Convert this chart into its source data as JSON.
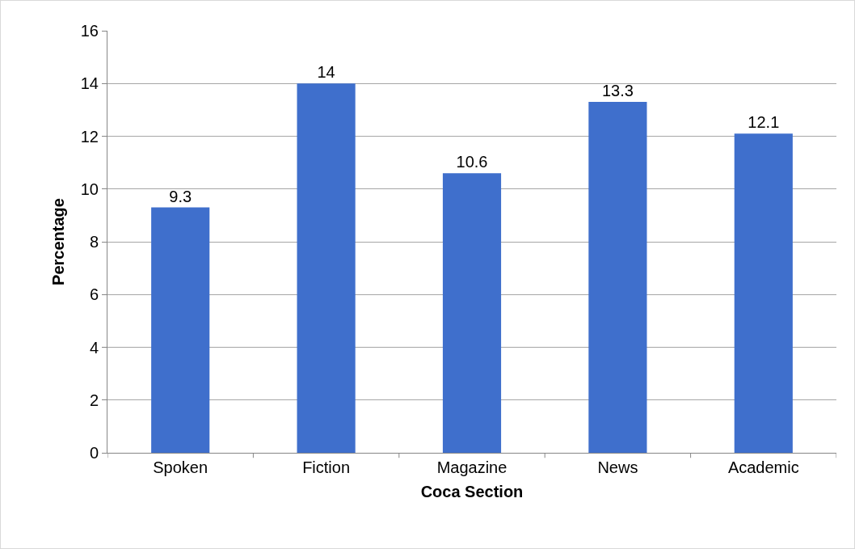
{
  "chart_data": {
    "type": "bar",
    "xlabel": "Coca Section",
    "ylabel": "Percentage",
    "categories": [
      "Spoken",
      "Fiction",
      "Magazine",
      "News",
      "Academic"
    ],
    "values": [
      9.3,
      14,
      10.6,
      13.3,
      12.1
    ],
    "color": "#3f6fcc",
    "ylim": [
      0,
      16
    ],
    "yticks": [
      0,
      2,
      4,
      6,
      8,
      10,
      12,
      14,
      16
    ],
    "grid": "y",
    "data_labels": true,
    "legend": false
  }
}
